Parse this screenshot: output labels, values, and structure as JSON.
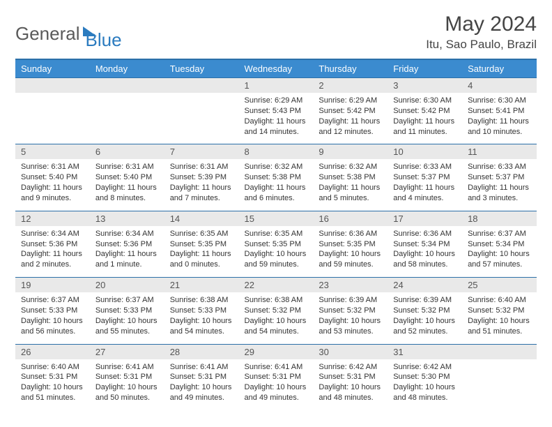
{
  "brand": {
    "part1": "General",
    "part2": "Blue"
  },
  "title": "May 2024",
  "location": "Itu, Sao Paulo, Brazil",
  "colors": {
    "header_bg": "#3b8bcf",
    "header_border": "#2b6fa8",
    "daynum_bg": "#e9e9e9",
    "text": "#333333"
  },
  "weekdays": [
    "Sunday",
    "Monday",
    "Tuesday",
    "Wednesday",
    "Thursday",
    "Friday",
    "Saturday"
  ],
  "weeks": [
    [
      null,
      null,
      null,
      {
        "n": "1",
        "sr": "Sunrise: 6:29 AM",
        "ss": "Sunset: 5:43 PM",
        "d1": "Daylight: 11 hours",
        "d2": "and 14 minutes."
      },
      {
        "n": "2",
        "sr": "Sunrise: 6:29 AM",
        "ss": "Sunset: 5:42 PM",
        "d1": "Daylight: 11 hours",
        "d2": "and 12 minutes."
      },
      {
        "n": "3",
        "sr": "Sunrise: 6:30 AM",
        "ss": "Sunset: 5:42 PM",
        "d1": "Daylight: 11 hours",
        "d2": "and 11 minutes."
      },
      {
        "n": "4",
        "sr": "Sunrise: 6:30 AM",
        "ss": "Sunset: 5:41 PM",
        "d1": "Daylight: 11 hours",
        "d2": "and 10 minutes."
      }
    ],
    [
      {
        "n": "5",
        "sr": "Sunrise: 6:31 AM",
        "ss": "Sunset: 5:40 PM",
        "d1": "Daylight: 11 hours",
        "d2": "and 9 minutes."
      },
      {
        "n": "6",
        "sr": "Sunrise: 6:31 AM",
        "ss": "Sunset: 5:40 PM",
        "d1": "Daylight: 11 hours",
        "d2": "and 8 minutes."
      },
      {
        "n": "7",
        "sr": "Sunrise: 6:31 AM",
        "ss": "Sunset: 5:39 PM",
        "d1": "Daylight: 11 hours",
        "d2": "and 7 minutes."
      },
      {
        "n": "8",
        "sr": "Sunrise: 6:32 AM",
        "ss": "Sunset: 5:38 PM",
        "d1": "Daylight: 11 hours",
        "d2": "and 6 minutes."
      },
      {
        "n": "9",
        "sr": "Sunrise: 6:32 AM",
        "ss": "Sunset: 5:38 PM",
        "d1": "Daylight: 11 hours",
        "d2": "and 5 minutes."
      },
      {
        "n": "10",
        "sr": "Sunrise: 6:33 AM",
        "ss": "Sunset: 5:37 PM",
        "d1": "Daylight: 11 hours",
        "d2": "and 4 minutes."
      },
      {
        "n": "11",
        "sr": "Sunrise: 6:33 AM",
        "ss": "Sunset: 5:37 PM",
        "d1": "Daylight: 11 hours",
        "d2": "and 3 minutes."
      }
    ],
    [
      {
        "n": "12",
        "sr": "Sunrise: 6:34 AM",
        "ss": "Sunset: 5:36 PM",
        "d1": "Daylight: 11 hours",
        "d2": "and 2 minutes."
      },
      {
        "n": "13",
        "sr": "Sunrise: 6:34 AM",
        "ss": "Sunset: 5:36 PM",
        "d1": "Daylight: 11 hours",
        "d2": "and 1 minute."
      },
      {
        "n": "14",
        "sr": "Sunrise: 6:35 AM",
        "ss": "Sunset: 5:35 PM",
        "d1": "Daylight: 11 hours",
        "d2": "and 0 minutes."
      },
      {
        "n": "15",
        "sr": "Sunrise: 6:35 AM",
        "ss": "Sunset: 5:35 PM",
        "d1": "Daylight: 10 hours",
        "d2": "and 59 minutes."
      },
      {
        "n": "16",
        "sr": "Sunrise: 6:36 AM",
        "ss": "Sunset: 5:35 PM",
        "d1": "Daylight: 10 hours",
        "d2": "and 59 minutes."
      },
      {
        "n": "17",
        "sr": "Sunrise: 6:36 AM",
        "ss": "Sunset: 5:34 PM",
        "d1": "Daylight: 10 hours",
        "d2": "and 58 minutes."
      },
      {
        "n": "18",
        "sr": "Sunrise: 6:37 AM",
        "ss": "Sunset: 5:34 PM",
        "d1": "Daylight: 10 hours",
        "d2": "and 57 minutes."
      }
    ],
    [
      {
        "n": "19",
        "sr": "Sunrise: 6:37 AM",
        "ss": "Sunset: 5:33 PM",
        "d1": "Daylight: 10 hours",
        "d2": "and 56 minutes."
      },
      {
        "n": "20",
        "sr": "Sunrise: 6:37 AM",
        "ss": "Sunset: 5:33 PM",
        "d1": "Daylight: 10 hours",
        "d2": "and 55 minutes."
      },
      {
        "n": "21",
        "sr": "Sunrise: 6:38 AM",
        "ss": "Sunset: 5:33 PM",
        "d1": "Daylight: 10 hours",
        "d2": "and 54 minutes."
      },
      {
        "n": "22",
        "sr": "Sunrise: 6:38 AM",
        "ss": "Sunset: 5:32 PM",
        "d1": "Daylight: 10 hours",
        "d2": "and 54 minutes."
      },
      {
        "n": "23",
        "sr": "Sunrise: 6:39 AM",
        "ss": "Sunset: 5:32 PM",
        "d1": "Daylight: 10 hours",
        "d2": "and 53 minutes."
      },
      {
        "n": "24",
        "sr": "Sunrise: 6:39 AM",
        "ss": "Sunset: 5:32 PM",
        "d1": "Daylight: 10 hours",
        "d2": "and 52 minutes."
      },
      {
        "n": "25",
        "sr": "Sunrise: 6:40 AM",
        "ss": "Sunset: 5:32 PM",
        "d1": "Daylight: 10 hours",
        "d2": "and 51 minutes."
      }
    ],
    [
      {
        "n": "26",
        "sr": "Sunrise: 6:40 AM",
        "ss": "Sunset: 5:31 PM",
        "d1": "Daylight: 10 hours",
        "d2": "and 51 minutes."
      },
      {
        "n": "27",
        "sr": "Sunrise: 6:41 AM",
        "ss": "Sunset: 5:31 PM",
        "d1": "Daylight: 10 hours",
        "d2": "and 50 minutes."
      },
      {
        "n": "28",
        "sr": "Sunrise: 6:41 AM",
        "ss": "Sunset: 5:31 PM",
        "d1": "Daylight: 10 hours",
        "d2": "and 49 minutes."
      },
      {
        "n": "29",
        "sr": "Sunrise: 6:41 AM",
        "ss": "Sunset: 5:31 PM",
        "d1": "Daylight: 10 hours",
        "d2": "and 49 minutes."
      },
      {
        "n": "30",
        "sr": "Sunrise: 6:42 AM",
        "ss": "Sunset: 5:31 PM",
        "d1": "Daylight: 10 hours",
        "d2": "and 48 minutes."
      },
      {
        "n": "31",
        "sr": "Sunrise: 6:42 AM",
        "ss": "Sunset: 5:30 PM",
        "d1": "Daylight: 10 hours",
        "d2": "and 48 minutes."
      },
      null
    ]
  ]
}
